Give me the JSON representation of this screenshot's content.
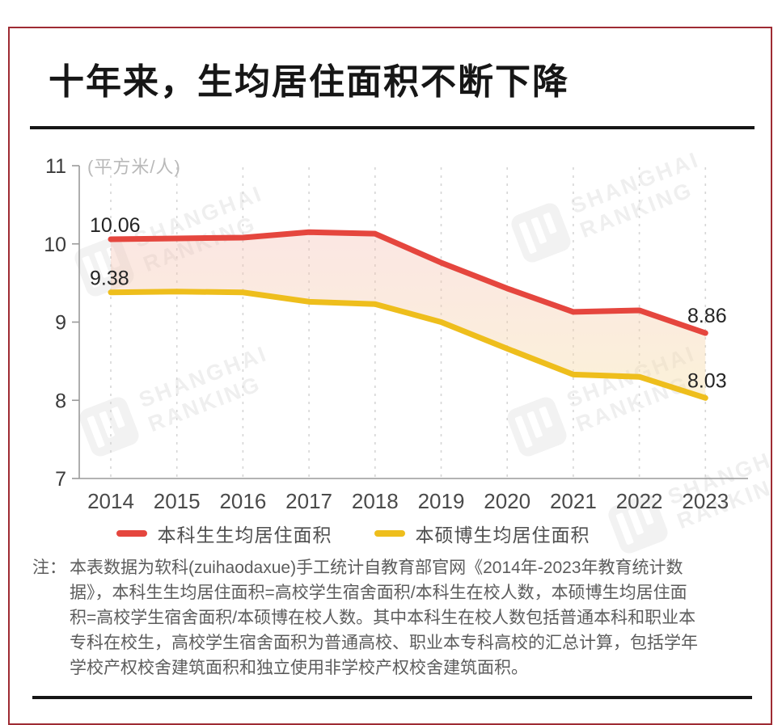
{
  "header": {
    "title": "十年来，生均居住面积不断下降"
  },
  "watermark": {
    "line1": "SHANGHAI",
    "line2": "RANKING"
  },
  "chart_data": {
    "type": "line",
    "title": "十年来，生均居住面积不断下降",
    "unit_label": "(平方米/人)",
    "x": [
      "2014",
      "2015",
      "2016",
      "2017",
      "2018",
      "2019",
      "2020",
      "2021",
      "2022",
      "2023"
    ],
    "ylim": [
      7,
      11
    ],
    "yticks": [
      7,
      8,
      9,
      10,
      11
    ],
    "grid": "vertical-dashed",
    "legend_position": "bottom",
    "series": [
      {
        "name": "本科生生均居住面积",
        "color": "#E5463E",
        "values": [
          10.06,
          10.07,
          10.08,
          10.15,
          10.13,
          9.76,
          9.43,
          9.13,
          9.15,
          8.86
        ]
      },
      {
        "name": "本硕博生均居住面积",
        "color": "#EEBE1C",
        "values": [
          9.38,
          9.39,
          9.38,
          9.26,
          9.23,
          9.0,
          8.66,
          8.33,
          8.3,
          8.03
        ]
      }
    ],
    "point_labels": [
      {
        "series": 0,
        "index": 0,
        "text": "10.06",
        "anchor": "start"
      },
      {
        "series": 1,
        "index": 0,
        "text": "9.38",
        "anchor": "start"
      },
      {
        "series": 0,
        "index": 9,
        "text": "8.86",
        "anchor": "middle"
      },
      {
        "series": 1,
        "index": 9,
        "text": "8.03",
        "anchor": "middle"
      }
    ],
    "area_fill_between": true,
    "area_gradient": {
      "top": "#F3B9AF",
      "bottom": "#F6E2A9"
    },
    "colors": {
      "grid": "#d6d6d6",
      "axis": "#9a9a9a",
      "ytick_text": "#3a3a3a",
      "xtick_text": "#4a4a4a",
      "point_label_text": "#242424",
      "unit_text": "#b9b9b9"
    }
  },
  "note": {
    "prefix": "注：",
    "lines": [
      "本表数据为软科(zuihaodaxue)手工统计自教育部官网《2014年-2023年教育统计数",
      "据》，本科生生均居住面积=高校学生宿舍面积/本科生在校人数，本硕博生均居住面",
      "积=高校学生宿舍面积/本硕博在校人数。其中本科生在校人数包括普通本科和职业本",
      "专科在校生，高校学生宿舍面积为普通高校、职业本专科高校的汇总计算，包括学年",
      "学校产权校舍建筑面积和独立使用非学校产权校舍建筑面积。"
    ]
  }
}
